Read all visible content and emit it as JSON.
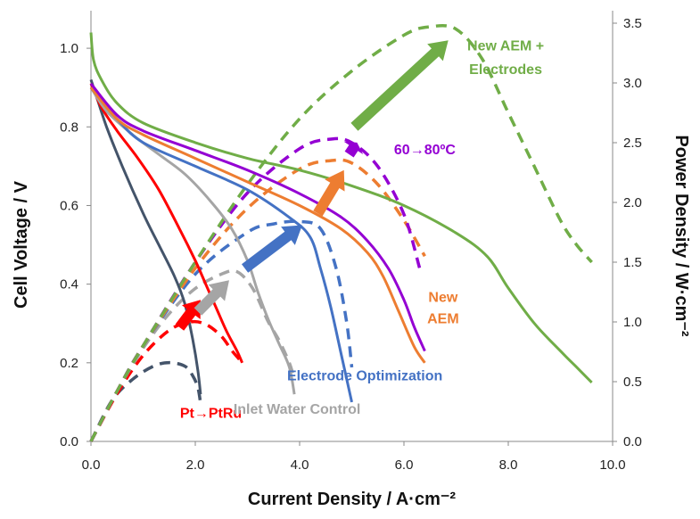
{
  "chart_data": {
    "type": "line",
    "xlabel": "Current Density / A·cm⁻²",
    "ylabel_left": "Cell Voltage / V",
    "ylabel_right": "Power Density / W·cm⁻²",
    "xlim": [
      0,
      10
    ],
    "ylim_left": [
      0,
      1.1
    ],
    "ylim_right": [
      0,
      3.5
    ],
    "x_ticks": [
      "0.0",
      "2.0",
      "4.0",
      "6.0",
      "8.0",
      "10.0"
    ],
    "y_left_ticks": [
      "0.0",
      "0.2",
      "0.4",
      "0.6",
      "0.8",
      "1.0"
    ],
    "y_right_ticks": [
      "0.0",
      "0.5",
      "1.0",
      "1.5",
      "2.0",
      "2.5",
      "3.0",
      "3.5"
    ],
    "grid": false,
    "legend": "none",
    "series": [
      {
        "color": "#44546A",
        "polarization_V": [
          [
            0,
            0.92
          ],
          [
            0.1,
            0.88
          ],
          [
            0.3,
            0.8
          ],
          [
            0.6,
            0.7
          ],
          [
            1.0,
            0.58
          ],
          [
            1.3,
            0.5
          ],
          [
            1.6,
            0.42
          ],
          [
            1.8,
            0.35
          ],
          [
            1.95,
            0.26
          ],
          [
            2.05,
            0.18
          ],
          [
            2.1,
            0.12
          ]
        ],
        "power_W_cm2": [
          [
            0,
            0
          ],
          [
            0.4,
            0.34
          ],
          [
            0.8,
            0.52
          ],
          [
            1.2,
            0.63
          ],
          [
            1.5,
            0.66
          ],
          [
            1.8,
            0.63
          ],
          [
            1.95,
            0.55
          ],
          [
            2.05,
            0.45
          ],
          [
            2.1,
            0.32
          ]
        ]
      },
      {
        "color": "#FF0000",
        "polarization_V": [
          [
            0,
            0.91
          ],
          [
            0.2,
            0.85
          ],
          [
            0.5,
            0.79
          ],
          [
            0.9,
            0.72
          ],
          [
            1.3,
            0.64
          ],
          [
            1.7,
            0.54
          ],
          [
            2.0,
            0.46
          ],
          [
            2.2,
            0.4
          ],
          [
            2.4,
            0.34
          ],
          [
            2.6,
            0.28
          ],
          [
            2.8,
            0.23
          ],
          [
            2.9,
            0.2
          ]
        ],
        "power_W_cm2": [
          [
            0,
            0
          ],
          [
            0.5,
            0.4
          ],
          [
            1.0,
            0.72
          ],
          [
            1.5,
            0.93
          ],
          [
            1.9,
            1.0
          ],
          [
            2.2,
            0.98
          ],
          [
            2.5,
            0.88
          ],
          [
            2.7,
            0.76
          ],
          [
            2.9,
            0.66
          ]
        ]
      },
      {
        "color": "#A5A5A5",
        "polarization_V": [
          [
            0,
            0.9
          ],
          [
            0.3,
            0.84
          ],
          [
            0.8,
            0.78
          ],
          [
            1.3,
            0.73
          ],
          [
            1.8,
            0.68
          ],
          [
            2.3,
            0.61
          ],
          [
            2.7,
            0.54
          ],
          [
            3.0,
            0.46
          ],
          [
            3.2,
            0.38
          ],
          [
            3.4,
            0.31
          ],
          [
            3.6,
            0.25
          ],
          [
            3.8,
            0.19
          ],
          [
            3.9,
            0.12
          ]
        ],
        "power_W_cm2": [
          [
            0,
            0
          ],
          [
            0.5,
            0.42
          ],
          [
            1.0,
            0.78
          ],
          [
            1.5,
            1.07
          ],
          [
            2.0,
            1.28
          ],
          [
            2.5,
            1.4
          ],
          [
            2.8,
            1.42
          ],
          [
            3.1,
            1.28
          ],
          [
            3.4,
            1.0
          ],
          [
            3.6,
            0.85
          ],
          [
            3.8,
            0.66
          ],
          [
            3.9,
            0.52
          ]
        ]
      },
      {
        "color": "#4472C4",
        "polarization_V": [
          [
            0,
            0.9
          ],
          [
            0.5,
            0.82
          ],
          [
            1.0,
            0.76
          ],
          [
            2.0,
            0.7
          ],
          [
            3.0,
            0.64
          ],
          [
            3.8,
            0.57
          ],
          [
            4.2,
            0.52
          ],
          [
            4.4,
            0.44
          ],
          [
            4.6,
            0.34
          ],
          [
            4.8,
            0.22
          ],
          [
            5.0,
            0.1
          ]
        ],
        "power_W_cm2": [
          [
            0,
            0
          ],
          [
            0.5,
            0.42
          ],
          [
            1.0,
            0.8
          ],
          [
            2.0,
            1.4
          ],
          [
            3.0,
            1.75
          ],
          [
            3.5,
            1.82
          ],
          [
            4.0,
            1.84
          ],
          [
            4.4,
            1.78
          ],
          [
            4.7,
            1.45
          ],
          [
            4.9,
            1.0
          ],
          [
            5.0,
            0.62
          ]
        ]
      },
      {
        "color": "#ED7D31",
        "polarization_V": [
          [
            0,
            0.9
          ],
          [
            0.5,
            0.82
          ],
          [
            1.0,
            0.78
          ],
          [
            2.0,
            0.72
          ],
          [
            3.0,
            0.66
          ],
          [
            4.0,
            0.6
          ],
          [
            4.8,
            0.54
          ],
          [
            5.3,
            0.48
          ],
          [
            5.6,
            0.42
          ],
          [
            5.9,
            0.33
          ],
          [
            6.2,
            0.24
          ],
          [
            6.4,
            0.2
          ]
        ],
        "power_W_cm2": [
          [
            0,
            0
          ],
          [
            0.5,
            0.42
          ],
          [
            1.0,
            0.8
          ],
          [
            2.0,
            1.45
          ],
          [
            3.0,
            1.95
          ],
          [
            4.0,
            2.28
          ],
          [
            4.6,
            2.35
          ],
          [
            5.0,
            2.33
          ],
          [
            5.5,
            2.15
          ],
          [
            6.0,
            1.85
          ],
          [
            6.4,
            1.55
          ]
        ]
      },
      {
        "color": "#9400D3",
        "polarization_V": [
          [
            0,
            0.91
          ],
          [
            0.5,
            0.83
          ],
          [
            1.0,
            0.79
          ],
          [
            2.0,
            0.74
          ],
          [
            3.0,
            0.69
          ],
          [
            4.0,
            0.63
          ],
          [
            4.8,
            0.57
          ],
          [
            5.3,
            0.51
          ],
          [
            5.7,
            0.44
          ],
          [
            6.0,
            0.36
          ],
          [
            6.2,
            0.29
          ],
          [
            6.4,
            0.23
          ]
        ],
        "power_W_cm2": [
          [
            0,
            0
          ],
          [
            0.5,
            0.42
          ],
          [
            1.0,
            0.8
          ],
          [
            2.0,
            1.5
          ],
          [
            3.0,
            2.08
          ],
          [
            4.0,
            2.45
          ],
          [
            4.6,
            2.53
          ],
          [
            5.0,
            2.5
          ],
          [
            5.5,
            2.3
          ],
          [
            6.0,
            1.9
          ],
          [
            6.3,
            1.45
          ]
        ]
      },
      {
        "color": "#70AD47",
        "polarization_V": [
          [
            0,
            1.04
          ],
          [
            0.05,
            0.97
          ],
          [
            0.2,
            0.92
          ],
          [
            0.5,
            0.86
          ],
          [
            1.0,
            0.81
          ],
          [
            2.0,
            0.76
          ],
          [
            3.0,
            0.72
          ],
          [
            4.0,
            0.69
          ],
          [
            5.0,
            0.65
          ],
          [
            6.0,
            0.6
          ],
          [
            7.0,
            0.53
          ],
          [
            7.6,
            0.47
          ],
          [
            8.0,
            0.39
          ],
          [
            8.5,
            0.3
          ],
          [
            9.0,
            0.23
          ],
          [
            9.3,
            0.19
          ],
          [
            9.6,
            0.15
          ]
        ],
        "power_W_cm2": [
          [
            0,
            0
          ],
          [
            0.5,
            0.42
          ],
          [
            1.0,
            0.8
          ],
          [
            2.0,
            1.5
          ],
          [
            3.0,
            2.15
          ],
          [
            4.0,
            2.7
          ],
          [
            5.0,
            3.1
          ],
          [
            6.0,
            3.4
          ],
          [
            6.5,
            3.47
          ],
          [
            7.0,
            3.45
          ],
          [
            7.5,
            3.2
          ],
          [
            8.0,
            2.75
          ],
          [
            8.5,
            2.3
          ],
          [
            9.0,
            1.85
          ],
          [
            9.3,
            1.65
          ],
          [
            9.6,
            1.5
          ]
        ]
      }
    ],
    "arrows": [
      {
        "color": "#FF0000",
        "from": [
          1.7,
          0.29
        ],
        "to": [
          2.1,
          0.36
        ]
      },
      {
        "color": "#A5A5A5",
        "from": [
          2.05,
          0.33
        ],
        "to": [
          2.65,
          0.41
        ]
      },
      {
        "color": "#4472C4",
        "from": [
          2.95,
          0.44
        ],
        "to": [
          4.05,
          0.55
        ]
      },
      {
        "color": "#ED7D31",
        "from": [
          4.35,
          0.58
        ],
        "to": [
          4.85,
          0.69
        ]
      },
      {
        "color": "#9400D3",
        "from": [
          4.95,
          0.73
        ],
        "to": [
          5.1,
          0.76
        ]
      },
      {
        "color": "#70AD47",
        "from": [
          5.05,
          0.8
        ],
        "to": [
          6.85,
          1.02
        ]
      }
    ],
    "annotations": [
      {
        "text": "Pt→PtRu",
        "color": "#FF0000",
        "at": [
          2.3,
          0.06
        ]
      },
      {
        "text": "Inlet Water Control",
        "color": "#A5A5A5",
        "at": [
          3.95,
          0.07
        ]
      },
      {
        "text": "Electrode  Optimization",
        "color": "#4472C4",
        "at": [
          5.25,
          0.155
        ]
      },
      {
        "text": "New",
        "color": "#ED7D31",
        "at": [
          6.75,
          0.355
        ]
      },
      {
        "text": "AEM",
        "color": "#ED7D31",
        "at": [
          6.75,
          0.3
        ]
      },
      {
        "text": "60→80ºC",
        "color": "#9400D3",
        "at": [
          6.4,
          0.73
        ]
      },
      {
        "text": "New AEM +",
        "color": "#70AD47",
        "at": [
          7.95,
          0.995
        ]
      },
      {
        "text": "Electrodes",
        "color": "#70AD47",
        "at": [
          7.95,
          0.935
        ]
      }
    ]
  }
}
